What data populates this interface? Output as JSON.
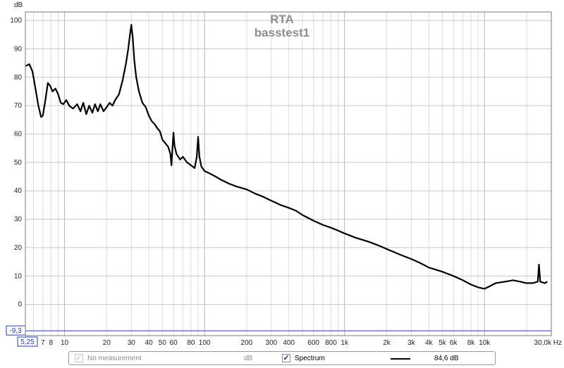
{
  "chart_data": {
    "type": "line",
    "title": "RTA",
    "subtitle": "basstest1",
    "ylabel": "dB",
    "xlabel": "Hz",
    "x_scale": "log",
    "xlim": [
      5.25,
      30000
    ],
    "ylim": [
      -11,
      103
    ],
    "grid": true,
    "y_ticks": [
      100,
      90,
      80,
      70,
      60,
      50,
      40,
      30,
      20,
      10,
      0
    ],
    "x_tick_labels": [
      {
        "value": 7,
        "label": "7"
      },
      {
        "value": 8,
        "label": "8"
      },
      {
        "value": 10,
        "label": "10"
      },
      {
        "value": 20,
        "label": "20"
      },
      {
        "value": 30,
        "label": "30"
      },
      {
        "value": 40,
        "label": "40"
      },
      {
        "value": 50,
        "label": "50"
      },
      {
        "value": 60,
        "label": "60"
      },
      {
        "value": 80,
        "label": "80"
      },
      {
        "value": 100,
        "label": "100"
      },
      {
        "value": 200,
        "label": "200"
      },
      {
        "value": 300,
        "label": "300"
      },
      {
        "value": 400,
        "label": "400"
      },
      {
        "value": 600,
        "label": "600"
      },
      {
        "value": 800,
        "label": "800"
      },
      {
        "value": 1000,
        "label": "1k"
      },
      {
        "value": 2000,
        "label": "2k"
      },
      {
        "value": 3000,
        "label": "3k"
      },
      {
        "value": 4000,
        "label": "4k"
      },
      {
        "value": 5000,
        "label": "5k"
      },
      {
        "value": 6000,
        "label": "6k"
      },
      {
        "value": 8000,
        "label": "8k"
      },
      {
        "value": 10000,
        "label": "10k"
      },
      {
        "value": 30000,
        "label": "30,0k Hz"
      }
    ],
    "x_min_label": "5,25",
    "y_min_label": "-9,3",
    "y_marker": -9.3,
    "series": [
      {
        "name": "Spectrum",
        "color": "#000000",
        "points": [
          [
            5.3,
            84
          ],
          [
            5.6,
            84.6
          ],
          [
            5.9,
            82
          ],
          [
            6.2,
            76
          ],
          [
            6.5,
            70
          ],
          [
            6.8,
            66
          ],
          [
            7.0,
            66.5
          ],
          [
            7.3,
            72
          ],
          [
            7.6,
            78
          ],
          [
            7.9,
            77
          ],
          [
            8.2,
            75
          ],
          [
            8.6,
            76
          ],
          [
            9.0,
            74
          ],
          [
            9.4,
            71
          ],
          [
            9.8,
            70.5
          ],
          [
            10.3,
            72
          ],
          [
            10.8,
            70
          ],
          [
            11.5,
            69
          ],
          [
            12.3,
            70.5
          ],
          [
            13.0,
            68
          ],
          [
            13.6,
            71
          ],
          [
            14.3,
            67
          ],
          [
            15.0,
            70
          ],
          [
            15.8,
            67.5
          ],
          [
            16.5,
            70.5
          ],
          [
            17.3,
            68
          ],
          [
            18.0,
            70.5
          ],
          [
            19.0,
            68
          ],
          [
            20.0,
            69.5
          ],
          [
            21.0,
            71
          ],
          [
            22.0,
            70
          ],
          [
            23.0,
            72
          ],
          [
            24.5,
            74
          ],
          [
            26.0,
            79
          ],
          [
            27.5,
            85
          ],
          [
            28.5,
            90
          ],
          [
            29.3,
            95
          ],
          [
            30.0,
            98.5
          ],
          [
            30.7,
            94
          ],
          [
            31.5,
            86
          ],
          [
            32.5,
            80
          ],
          [
            34.0,
            75
          ],
          [
            36.0,
            71
          ],
          [
            38.0,
            69.5
          ],
          [
            40.0,
            66.5
          ],
          [
            42.0,
            64.5
          ],
          [
            44.0,
            63.5
          ],
          [
            46.0,
            62
          ],
          [
            48.0,
            61
          ],
          [
            50.0,
            58
          ],
          [
            52.0,
            57
          ],
          [
            55.0,
            55.5
          ],
          [
            57.0,
            53
          ],
          [
            58.0,
            49
          ],
          [
            59.0,
            55
          ],
          [
            60.0,
            60.5
          ],
          [
            61.0,
            56
          ],
          [
            63.0,
            53
          ],
          [
            67.0,
            51
          ],
          [
            70.0,
            52
          ],
          [
            75.0,
            50
          ],
          [
            80.0,
            49
          ],
          [
            85.0,
            48
          ],
          [
            88.0,
            52
          ],
          [
            90.0,
            59
          ],
          [
            92.0,
            52
          ],
          [
            95.0,
            48.5
          ],
          [
            100.0,
            47
          ],
          [
            110.0,
            46
          ],
          [
            120.0,
            45
          ],
          [
            130.0,
            44
          ],
          [
            150.0,
            42.5
          ],
          [
            170.0,
            41.5
          ],
          [
            200.0,
            40.5
          ],
          [
            230.0,
            39
          ],
          [
            260.0,
            38
          ],
          [
            300.0,
            36.5
          ],
          [
            350.0,
            35
          ],
          [
            400.0,
            34
          ],
          [
            450.0,
            33
          ],
          [
            500.0,
            31.5
          ],
          [
            600.0,
            29.5
          ],
          [
            700.0,
            28
          ],
          [
            800.0,
            27
          ],
          [
            900.0,
            26
          ],
          [
            1000.0,
            25
          ],
          [
            1200.0,
            23.5
          ],
          [
            1500.0,
            22
          ],
          [
            1800.0,
            20.5
          ],
          [
            2000.0,
            19.5
          ],
          [
            2500.0,
            17.5
          ],
          [
            3000.0,
            16
          ],
          [
            3500.0,
            14.5
          ],
          [
            4000.0,
            13
          ],
          [
            5000.0,
            11.5
          ],
          [
            6000.0,
            10
          ],
          [
            7000.0,
            8.5
          ],
          [
            8000.0,
            7
          ],
          [
            9000.0,
            6
          ],
          [
            10000.0,
            5.5
          ],
          [
            11000.0,
            6.5
          ],
          [
            12000.0,
            7.5
          ],
          [
            14000.0,
            8
          ],
          [
            16000.0,
            8.5
          ],
          [
            18000.0,
            8
          ],
          [
            20000.0,
            7.5
          ],
          [
            22000.0,
            7.5
          ],
          [
            24000.0,
            8
          ],
          [
            24500.0,
            14
          ],
          [
            25000.0,
            8
          ],
          [
            27000.0,
            7.5
          ],
          [
            28000.0,
            8
          ]
        ]
      }
    ]
  },
  "legend": {
    "no_measurement_label": "No measurement",
    "no_measurement_checked": true,
    "unit_label": "dB",
    "spectrum_label": "Spectrum",
    "spectrum_checked": true,
    "value_readout": "84,6 dB"
  }
}
